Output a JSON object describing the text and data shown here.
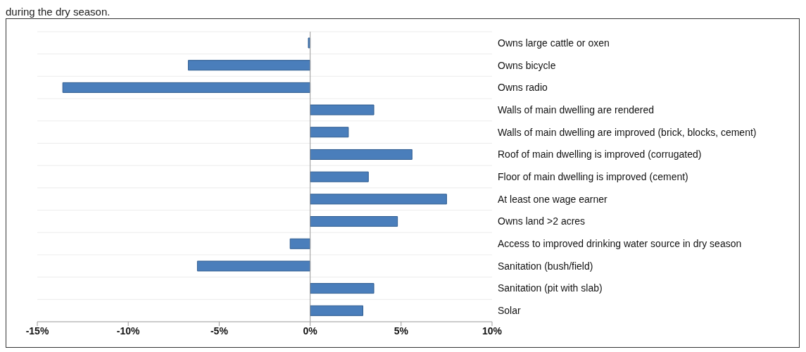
{
  "chart_data": {
    "type": "bar",
    "orientation": "horizontal",
    "categories": [
      "Owns large cattle or oxen",
      "Owns bicycle",
      "Owns radio",
      "Walls of main dwelling are rendered",
      "Walls of main dwelling are improved (brick, blocks, cement)",
      "Roof of main dwelling is improved (corrugated)",
      "Floor of main dwelling is improved (cement)",
      "At least one wage earner",
      "Owns land >2 acres",
      "Access to improved drinking water source in dry season",
      "Sanitation (bush/field)",
      "Sanitation (pit with slab)",
      "Solar"
    ],
    "values": [
      -0.1,
      -6.7,
      -13.6,
      3.5,
      2.1,
      5.6,
      3.2,
      7.5,
      4.8,
      -1.1,
      -6.2,
      3.5,
      2.9
    ],
    "color": "#4a7ebb",
    "xlim": [
      -15,
      10
    ],
    "xticks": [
      {
        "value": -15,
        "label": "-15%"
      },
      {
        "value": -10,
        "label": "-10%"
      },
      {
        "value": -5,
        "label": "-5%"
      },
      {
        "value": 0,
        "label": "0%"
      },
      {
        "value": 5,
        "label": "5%"
      },
      {
        "value": 10,
        "label": "10%"
      }
    ],
    "grid": "y",
    "annotations": [
      "during the dry season."
    ]
  }
}
